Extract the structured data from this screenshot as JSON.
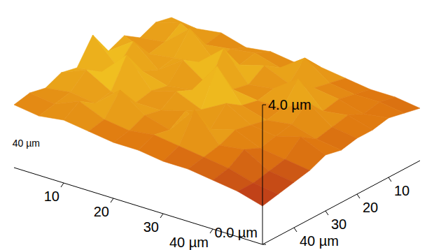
{
  "chart_data": {
    "type": "surface",
    "x": [
      0,
      5,
      10,
      15,
      20,
      25,
      30,
      35,
      40,
      45,
      50
    ],
    "y": [
      0,
      5,
      10,
      15,
      20,
      25,
      30,
      35,
      40,
      45,
      50
    ],
    "z": [
      [
        1.9,
        2.0,
        1.8,
        2.1,
        1.9,
        2.6,
        1.9,
        2.0,
        1.8,
        1.9,
        1.8
      ],
      [
        1.8,
        2.2,
        1.9,
        1.8,
        2.4,
        1.9,
        2.0,
        2.3,
        1.9,
        1.8,
        1.7
      ],
      [
        1.9,
        1.8,
        2.5,
        1.9,
        1.8,
        2.0,
        2.7,
        1.9,
        1.8,
        2.1,
        1.8
      ],
      [
        1.7,
        1.9,
        1.8,
        2.0,
        2.3,
        1.8,
        1.9,
        1.8,
        2.4,
        1.8,
        1.7
      ],
      [
        1.8,
        2.0,
        1.9,
        2.6,
        1.8,
        1.9,
        2.1,
        1.8,
        1.9,
        1.7,
        1.6
      ],
      [
        1.7,
        1.8,
        2.1,
        1.8,
        1.9,
        2.8,
        1.8,
        2.0,
        1.7,
        1.8,
        1.6
      ],
      [
        1.8,
        2.3,
        1.8,
        1.9,
        1.8,
        1.9,
        2.2,
        1.7,
        2.5,
        1.7,
        1.5
      ],
      [
        1.7,
        1.8,
        1.9,
        2.4,
        1.8,
        1.7,
        1.8,
        1.9,
        1.7,
        1.6,
        1.5
      ],
      [
        1.6,
        1.7,
        1.8,
        1.7,
        2.2,
        1.8,
        1.7,
        1.6,
        1.8,
        1.5,
        1.4
      ],
      [
        1.6,
        1.7,
        1.6,
        1.8,
        1.7,
        1.6,
        1.9,
        1.5,
        1.4,
        1.3,
        1.3
      ],
      [
        1.5,
        1.6,
        1.7,
        1.6,
        1.6,
        1.5,
        1.6,
        1.4,
        1.3,
        1.2,
        1.1
      ]
    ],
    "xlim": [
      0,
      50
    ],
    "ylim": [
      0,
      50
    ],
    "zlim": [
      0,
      4
    ],
    "xticks": [
      10,
      20,
      30,
      {
        "value": 40,
        "label": "40 µm"
      }
    ],
    "yticks": [
      10,
      20,
      30,
      {
        "value": 40,
        "label": "40 µm"
      }
    ],
    "back_yticks": [
      {
        "value": 40,
        "label": "40 µm"
      }
    ],
    "zticks": [
      {
        "value": 0,
        "label": "0.0 µm"
      },
      {
        "value": 4,
        "label": "4.0 µm"
      }
    ],
    "colors": [
      "#b8321a",
      "#e07a10",
      "#f0c020",
      "#f8ec40"
    ]
  }
}
